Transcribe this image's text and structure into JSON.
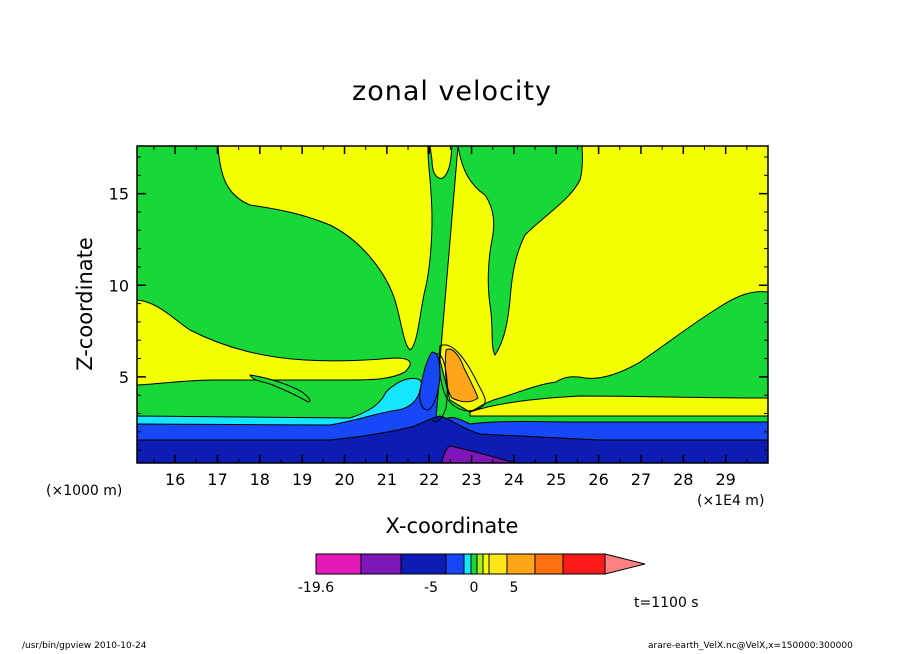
{
  "chart_data": {
    "type": "heatmap",
    "title": "zonal velocity",
    "xlabel": "X-coordinate",
    "ylabel": "Z-coordinate",
    "x_unit_left": "(×1000 m)",
    "x_unit_right": "(×1E4 m)",
    "xlim": [
      15.1,
      30
    ],
    "ylim": [
      0.3,
      17.6
    ],
    "x_ticks": [
      16,
      17,
      18,
      19,
      20,
      21,
      22,
      23,
      24,
      25,
      26,
      27,
      28,
      29
    ],
    "y_ticks": [
      5,
      10,
      15
    ],
    "colorbar": {
      "labels": [
        "-19.6",
        "-5",
        "0",
        "5"
      ],
      "colors": [
        "#e21ab8",
        "#7e16b8",
        "#0d1cb2",
        "#1748f8",
        "#15e6ff",
        "#18d838",
        "#a6ee1a",
        "#f4ff00",
        "#ffe61a",
        "#ffa51a",
        "#ff7010",
        "#ff1a1a",
        "#ff8080"
      ]
    },
    "regions": [
      {
        "level": "green",
        "color": "#18d838"
      },
      {
        "level": "yellow",
        "color": "#f4ff00"
      },
      {
        "level": "cyan",
        "color": "#15e6ff"
      },
      {
        "level": "blue",
        "color": "#1748f8"
      },
      {
        "level": "navy",
        "color": "#0d1cb2"
      },
      {
        "level": "purple",
        "color": "#7e16b8"
      },
      {
        "level": "orange",
        "color": "#ffa51a"
      }
    ],
    "time_label": "t=1100 s"
  },
  "footer": {
    "left": "/usr/bin/gpview   2010-10-24",
    "right": "arare-earth_VelX.nc@VelX,x=150000:300000"
  }
}
